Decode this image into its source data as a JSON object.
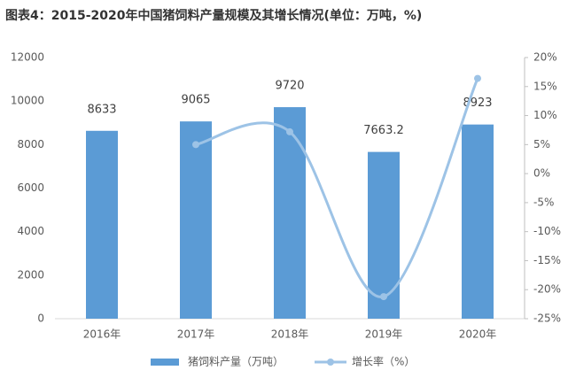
{
  "chart_data": {
    "type": "bar",
    "title": "图表4：2015-2020年中国猪饲料产量规模及其增长情况(单位：万吨，%)",
    "categories": [
      "2016年",
      "2017年",
      "2018年",
      "2019年",
      "2020年"
    ],
    "series": [
      {
        "name": "猪饲料产量（万吨）",
        "type": "bar",
        "color": "#5b9bd5",
        "values": [
          8633,
          9065,
          9720,
          7663.2,
          8923
        ]
      },
      {
        "name": "增长率（%）",
        "type": "line",
        "axis": "y2",
        "color": "#9dc3e6",
        "values": [
          null,
          5.0,
          7.2,
          -21.2,
          16.4
        ]
      }
    ],
    "ylim": [
      0,
      12000
    ],
    "yticks": [
      0,
      2000,
      4000,
      6000,
      8000,
      10000,
      12000
    ],
    "y2lim": [
      -25,
      20
    ],
    "y2ticks": [
      {
        "value": -25,
        "label": "-25%"
      },
      {
        "value": -20,
        "label": "-20%"
      },
      {
        "value": -15,
        "label": "-15%"
      },
      {
        "value": -10,
        "label": "-10%"
      },
      {
        "value": -5,
        "label": "-5%"
      },
      {
        "value": 0,
        "label": "0%"
      },
      {
        "value": 5,
        "label": "5%"
      },
      {
        "value": 10,
        "label": "10%"
      },
      {
        "value": 15,
        "label": "15%"
      },
      {
        "value": 20,
        "label": "20%"
      }
    ],
    "grid": false
  }
}
